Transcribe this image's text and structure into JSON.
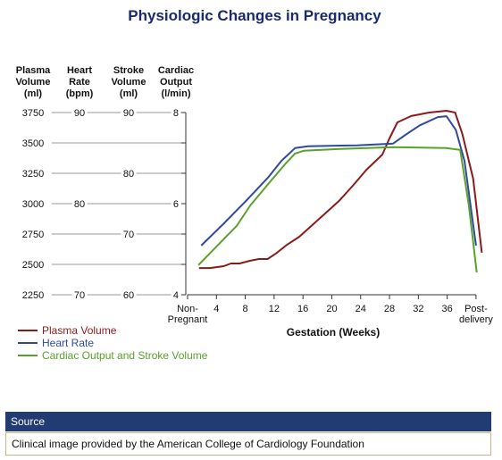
{
  "chart_data": {
    "type": "line",
    "title": "Physiologic Changes in Pregnancy",
    "y_axes": [
      {
        "label": "Plasma Volume (ml)",
        "ylim": [
          2250,
          3750
        ],
        "yticks": [
          2250,
          2500,
          2750,
          3000,
          3250,
          3500,
          3750
        ]
      },
      {
        "label": "Heart Rate (bpm)",
        "ylim": [
          70,
          90
        ],
        "yticks": [
          70,
          80,
          90
        ]
      },
      {
        "label": "Stroke Volume (ml)",
        "ylim": [
          60,
          90
        ],
        "yticks": [
          60,
          70,
          80,
          90
        ]
      },
      {
        "label": "Cardiac Output (l/min)",
        "ylim": [
          4,
          8
        ],
        "yticks": [
          4,
          6,
          8
        ]
      }
    ],
    "xlabel": "Gestation (Weeks)",
    "xlim": [
      0,
      41
    ],
    "xticks": [
      {
        "value": 0,
        "label": "Non-Pregnant"
      },
      4,
      8,
      12,
      16,
      20,
      24,
      28,
      32,
      36,
      {
        "value": 40,
        "label": "Post-delivery"
      }
    ],
    "series": [
      {
        "name": "Plasma Volume",
        "color": "#8b1a1a",
        "axis": 0,
        "x": [
          1.6,
          3.1,
          5,
          6,
          7.2,
          8.7,
          9.9,
          11.1,
          12.4,
          13.6,
          15.5,
          17.3,
          19.2,
          21,
          22.9,
          24.8,
          27,
          28,
          29.1,
          31,
          33.5,
          35.9,
          37.1,
          38.1,
          39.6,
          40.8
        ],
        "values": [
          2470,
          2470,
          2485,
          2507,
          2507,
          2530,
          2544,
          2544,
          2596,
          2654,
          2728,
          2824,
          2926,
          3022,
          3147,
          3279,
          3404,
          3537,
          3669,
          3721,
          3750,
          3765,
          3750,
          3574,
          3206,
          2596
        ]
      },
      {
        "name": "Heart Rate",
        "color": "#2e4a9c",
        "axis": 1,
        "x": [
          1.9,
          5,
          8.1,
          11.2,
          13,
          14.9,
          16.7,
          23.5,
          28.5,
          30.3,
          32.2,
          34.7,
          35.9,
          37.2,
          38.4,
          40
        ],
        "values": [
          75.4,
          77.8,
          80.3,
          82.9,
          84.7,
          86.1,
          86.3,
          86.4,
          86.6,
          87.6,
          88.6,
          89.5,
          89.6,
          88.1,
          84.7,
          75.4
        ]
      },
      {
        "name": "Cardiac Output and Stroke Volume",
        "color": "#5aa02c",
        "axis": 3,
        "x": [
          1.5,
          5,
          6.8,
          8.7,
          11.8,
          13.6,
          14.9,
          16.1,
          21.1,
          28.5,
          35.9,
          37.8,
          39,
          40.1
        ],
        "values": [
          4.65,
          5.22,
          5.51,
          5.96,
          6.55,
          6.88,
          7.1,
          7.16,
          7.2,
          7.24,
          7.22,
          7.18,
          5.96,
          4.49
        ]
      }
    ]
  },
  "source": {
    "heading": "Source",
    "text": "Clinical image provided by the American College of Cardiology Foundation"
  }
}
